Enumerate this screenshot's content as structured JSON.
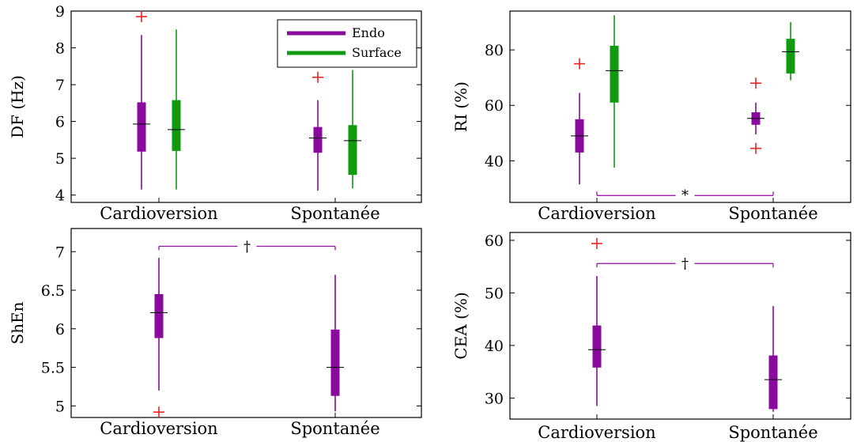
{
  "chart_data": [
    {
      "id": "df",
      "type": "boxplot",
      "ylabel": "DF (Hz)",
      "ylim": [
        3.8,
        9.0
      ],
      "yticks": [
        4,
        5,
        6,
        7,
        8,
        9
      ],
      "yticklabels": [
        "4",
        "5",
        "6",
        "7",
        "8",
        "9"
      ],
      "categories": [
        "Cardioversion",
        "Spontanée"
      ],
      "legend": {
        "position": "top-right",
        "entries": [
          {
            "name": "Endo",
            "color": "#8B0A9E"
          },
          {
            "name": "Surface",
            "color": "#0F9A0F"
          }
        ]
      },
      "series": [
        {
          "name": "Endo",
          "color": "#8B0A9E",
          "boxes": [
            {
              "category": "Cardioversion",
              "whisker_low": 4.15,
              "q1": 5.18,
              "median": 5.93,
              "q3": 6.52,
              "whisker_high": 8.35,
              "outliers": [
                8.85
              ]
            },
            {
              "category": "Spontanée",
              "whisker_low": 4.12,
              "q1": 5.15,
              "median": 5.55,
              "q3": 5.85,
              "whisker_high": 6.58,
              "outliers": [
                7.2
              ]
            }
          ]
        },
        {
          "name": "Surface",
          "color": "#0F9A0F",
          "boxes": [
            {
              "category": "Cardioversion",
              "whisker_low": 4.15,
              "q1": 5.2,
              "median": 5.78,
              "q3": 6.58,
              "whisker_high": 8.5,
              "outliers": []
            },
            {
              "category": "Spontanée",
              "whisker_low": 4.18,
              "q1": 4.55,
              "median": 5.48,
              "q3": 5.9,
              "whisker_high": 7.4,
              "outliers": []
            }
          ]
        }
      ],
      "significance": null
    },
    {
      "id": "ri",
      "type": "boxplot",
      "ylabel": "RI (%)",
      "ylim": [
        25,
        94
      ],
      "yticks": [
        40,
        60,
        80
      ],
      "yticklabels": [
        "40",
        "60",
        "80"
      ],
      "categories": [
        "Cardioversion",
        "Spontanée"
      ],
      "legend": null,
      "series": [
        {
          "name": "Endo",
          "color": "#8B0A9E",
          "boxes": [
            {
              "category": "Cardioversion",
              "whisker_low": 31.5,
              "q1": 43,
              "median": 49,
              "q3": 55,
              "whisker_high": 64.5,
              "outliers": [
                75
              ]
            },
            {
              "category": "Spontanée",
              "whisker_low": 49.5,
              "q1": 53,
              "median": 55.3,
              "q3": 57.5,
              "whisker_high": 61,
              "outliers": [
                68,
                44.5
              ]
            }
          ]
        },
        {
          "name": "Surface",
          "color": "#0F9A0F",
          "boxes": [
            {
              "category": "Cardioversion",
              "whisker_low": 37.5,
              "q1": 61,
              "median": 72.5,
              "q3": 81.5,
              "whisker_high": 92.5,
              "outliers": []
            },
            {
              "category": "Spontanée",
              "whisker_low": 69,
              "q1": 71.5,
              "median": 79.3,
              "q3": 84,
              "whisker_high": 90,
              "outliers": []
            }
          ]
        }
      ],
      "significance": {
        "symbol": "*",
        "value": 27.5,
        "placement": "below"
      }
    },
    {
      "id": "shen",
      "type": "boxplot",
      "ylabel": "ShEn",
      "ylim": [
        4.85,
        7.3
      ],
      "yticks": [
        5,
        5.5,
        6,
        6.5,
        7
      ],
      "yticklabels": [
        "5",
        "5.5",
        "6",
        "6.5",
        "7"
      ],
      "categories": [
        "Cardioversion",
        "Spontanée"
      ],
      "legend": null,
      "series": [
        {
          "name": "Endo",
          "color": "#8B0A9E",
          "boxes": [
            {
              "category": "Cardioversion",
              "whisker_low": 5.2,
              "q1": 5.88,
              "median": 6.21,
              "q3": 6.45,
              "whisker_high": 6.92,
              "outliers": [
                4.92
              ]
            },
            {
              "category": "Spontanée",
              "whisker_low": 4.93,
              "q1": 5.13,
              "median": 5.5,
              "q3": 5.99,
              "whisker_high": 6.7,
              "outliers": []
            }
          ]
        }
      ],
      "significance": {
        "symbol": "†",
        "value": 7.07,
        "placement": "above"
      }
    },
    {
      "id": "cea",
      "type": "boxplot",
      "ylabel": "CEA (%)",
      "ylim": [
        26,
        61.5
      ],
      "yticks": [
        30,
        40,
        50,
        60
      ],
      "yticklabels": [
        "30",
        "40",
        "50",
        "60"
      ],
      "categories": [
        "Cardioversion",
        "Spontanée"
      ],
      "legend": null,
      "series": [
        {
          "name": "Endo",
          "color": "#8B0A9E",
          "boxes": [
            {
              "category": "Cardioversion",
              "whisker_low": 28.5,
              "q1": 35.8,
              "median": 39.2,
              "q3": 43.8,
              "whisker_high": 53.2,
              "outliers": [
                59.4
              ]
            },
            {
              "category": "Spontanée",
              "whisker_low": 27.4,
              "q1": 27.9,
              "median": 33.5,
              "q3": 38.1,
              "whisker_high": 47.5,
              "outliers": []
            }
          ]
        }
      ],
      "significance": {
        "symbol": "†",
        "value": 55.6,
        "placement": "above"
      }
    }
  ],
  "colors": {
    "outlier": "#EE2222",
    "bracket": "#8B0A9E"
  }
}
